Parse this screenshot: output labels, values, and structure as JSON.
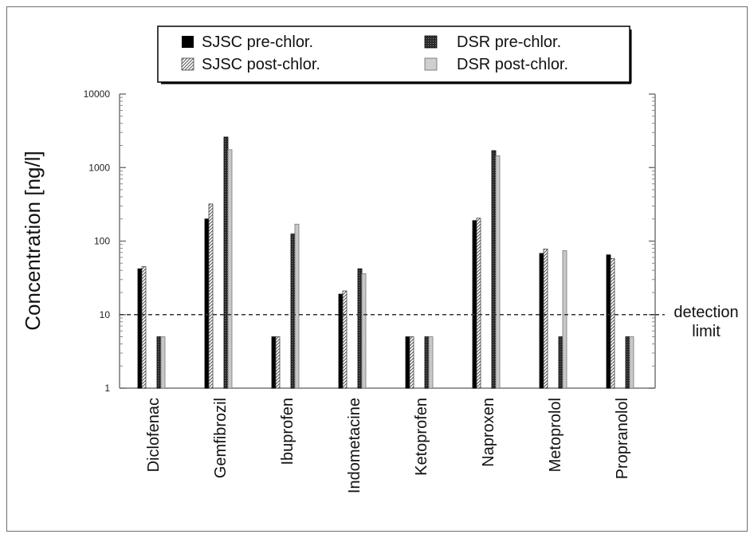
{
  "chart_data": {
    "type": "bar",
    "yscale": "log",
    "ylim": [
      1,
      10000
    ],
    "yticks": [
      "1",
      "10",
      "100",
      "1000",
      "10000"
    ],
    "ylabel": "Concentration [ng/l]",
    "xlabel": "",
    "title": "",
    "legend_position": "top-center",
    "categories": [
      "Diclofenac",
      "Gemfibrozil",
      "Ibuprofen",
      "Indometacine",
      "Ketoprofen",
      "Naproxen",
      "Metoprolol",
      "Propranolol"
    ],
    "series": [
      {
        "name": "SJSC pre-chlor.",
        "color": "#000000",
        "values": [
          42,
          200,
          5,
          19,
          5,
          190,
          68,
          65
        ]
      },
      {
        "name": "SJSC post-chlor.",
        "color": "#bdbdbd",
        "values": [
          45,
          320,
          5,
          21,
          5,
          205,
          78,
          58
        ]
      },
      {
        "name": "DSR pre-chlor.",
        "color": "#1e1e1e",
        "values": [
          5,
          2600,
          125,
          42,
          5,
          1700,
          5,
          5
        ]
      },
      {
        "name": "DSR post-chlor.",
        "color": "#c8c8c8",
        "values": [
          5,
          1750,
          170,
          36,
          5,
          1450,
          74,
          5
        ]
      }
    ],
    "detection_limit": {
      "value": 10,
      "label_line1": "detection",
      "label_line2": "limit"
    },
    "grid": false
  }
}
